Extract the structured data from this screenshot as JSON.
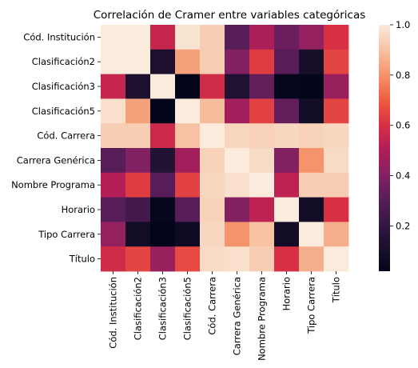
{
  "chart_data": {
    "type": "heatmap",
    "title": "Correlación de Cramer entre variables categóricas",
    "xlabel": "",
    "ylabel": "",
    "labels": [
      "Cód. Institución",
      "Clasificación2",
      "Clasificación3",
      "Clasificación5",
      "Cód. Carrera",
      "Carrera Genérica",
      "Nombre Programa",
      "Horario",
      "Tipo Carrera",
      "Título"
    ],
    "values": [
      [
        1.0,
        1.0,
        0.55,
        0.98,
        0.93,
        0.3,
        0.49,
        0.35,
        0.44,
        0.6
      ],
      [
        1.0,
        1.0,
        0.12,
        0.83,
        0.93,
        0.4,
        0.63,
        0.3,
        0.1,
        0.65
      ],
      [
        0.55,
        0.12,
        1.0,
        0.02,
        0.58,
        0.13,
        0.33,
        0.03,
        0.02,
        0.45
      ],
      [
        0.97,
        0.83,
        0.02,
        1.0,
        0.89,
        0.47,
        0.64,
        0.33,
        0.08,
        0.65
      ],
      [
        0.93,
        0.93,
        0.57,
        0.9,
        1.0,
        0.95,
        0.94,
        0.95,
        0.94,
        0.95
      ],
      [
        0.3,
        0.4,
        0.14,
        0.47,
        0.94,
        1.0,
        0.96,
        0.4,
        0.8,
        0.96
      ],
      [
        0.51,
        0.63,
        0.3,
        0.64,
        0.95,
        0.97,
        1.0,
        0.53,
        0.93,
        0.93
      ],
      [
        0.3,
        0.25,
        0.03,
        0.3,
        0.94,
        0.4,
        0.53,
        1.0,
        0.08,
        0.6
      ],
      [
        0.44,
        0.08,
        0.02,
        0.07,
        0.95,
        0.8,
        0.9,
        0.08,
        1.0,
        0.86
      ],
      [
        0.58,
        0.65,
        0.45,
        0.66,
        0.96,
        0.97,
        0.93,
        0.6,
        0.86,
        1.0
      ]
    ],
    "colorbar": {
      "range": [
        0.02,
        1.0
      ],
      "ticks": [
        "0.2",
        "0.4",
        "0.6",
        "0.8",
        "1.0"
      ],
      "tick_values": [
        0.2,
        0.4,
        0.6,
        0.8,
        1.0
      ]
    },
    "colormap": "rocket",
    "grid": false,
    "legend": "colorbar-right"
  }
}
